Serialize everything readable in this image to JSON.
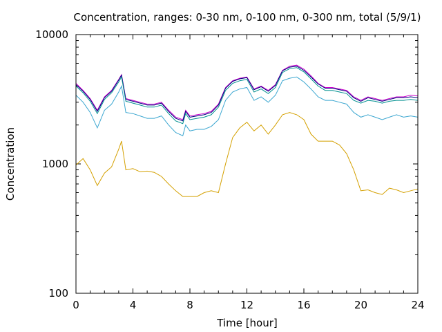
{
  "chart_data": {
    "type": "line",
    "title": "Concentration, ranges: 0-30 nm, 0-100 nm, 0-300 nm, total (5/9/1)",
    "xlabel": "Time [hour]",
    "ylabel": "Concentration",
    "xlim": [
      0,
      24
    ],
    "ylim": [
      100,
      10000
    ],
    "yscale": "log",
    "grid": false,
    "legend": "none",
    "x_ticks": [
      "0",
      "4",
      "8",
      "12",
      "16",
      "20",
      "24"
    ],
    "y_ticks": [
      "100",
      "1000",
      "10000"
    ],
    "x": [
      0,
      0.5,
      1,
      1.5,
      2,
      2.5,
      3,
      3.2,
      3.5,
      4,
      4.5,
      5,
      5.5,
      6,
      6.5,
      7,
      7.5,
      7.7,
      8,
      8.5,
      9,
      9.5,
      10,
      10.5,
      11,
      11.5,
      12,
      12.5,
      13,
      13.5,
      14,
      14.5,
      15,
      15.5,
      16,
      16.5,
      17,
      17.5,
      18,
      18.5,
      19,
      19.5,
      20,
      20.5,
      21,
      21.5,
      22,
      22.5,
      23,
      23.5,
      24
    ],
    "series": [
      {
        "color": "#cc00cc",
        "values": [
          4200,
          3700,
          3200,
          2600,
          3300,
          3700,
          4500,
          4900,
          3200,
          3100,
          3000,
          2900,
          2900,
          3000,
          2600,
          2300,
          2200,
          2600,
          2350,
          2400,
          2450,
          2550,
          2900,
          3900,
          4400,
          4600,
          4700,
          3800,
          4000,
          3700,
          4100,
          5300,
          5700,
          5800,
          5400,
          4800,
          4200,
          3900,
          3900,
          3800,
          3700,
          3300,
          3100,
          3300,
          3200,
          3100,
          3200,
          3300,
          3300,
          3400,
          3350
        ]
      },
      {
        "color": "#000080",
        "values": [
          4100,
          3650,
          3150,
          2550,
          3250,
          3650,
          4450,
          4850,
          3150,
          3050,
          2950,
          2850,
          2850,
          2950,
          2550,
          2250,
          2150,
          2550,
          2300,
          2350,
          2400,
          2500,
          2850,
          3850,
          4350,
          4550,
          4650,
          3750,
          3950,
          3650,
          4050,
          5250,
          5600,
          5700,
          5300,
          4700,
          4150,
          3850,
          3850,
          3750,
          3650,
          3250,
          3050,
          3250,
          3150,
          3050,
          3150,
          3250,
          3250,
          3300,
          3250
        ]
      },
      {
        "color": "#009090",
        "values": [
          4000,
          3550,
          3050,
          2450,
          3150,
          3550,
          4300,
          4700,
          3050,
          2950,
          2850,
          2750,
          2750,
          2850,
          2450,
          2150,
          2050,
          2450,
          2200,
          2250,
          2300,
          2400,
          2750,
          3700,
          4200,
          4400,
          4500,
          3600,
          3800,
          3500,
          3900,
          5100,
          5450,
          5550,
          5150,
          4550,
          4000,
          3700,
          3700,
          3600,
          3500,
          3100,
          2950,
          3100,
          3050,
          2950,
          3050,
          3100,
          3100,
          3150,
          3100
        ]
      },
      {
        "color": "#3aa6d0",
        "values": [
          3400,
          3000,
          2500,
          1900,
          2600,
          2900,
          3600,
          4000,
          2500,
          2450,
          2350,
          2250,
          2250,
          2350,
          2000,
          1750,
          1650,
          2000,
          1800,
          1850,
          1850,
          1950,
          2200,
          3100,
          3600,
          3800,
          3900,
          3100,
          3300,
          3000,
          3400,
          4400,
          4600,
          4700,
          4300,
          3800,
          3300,
          3100,
          3100,
          3000,
          2900,
          2500,
          2300,
          2400,
          2300,
          2200,
          2300,
          2400,
          2300,
          2350,
          2300
        ]
      },
      {
        "color": "#d4a000",
        "values": [
          980,
          1100,
          900,
          680,
          850,
          950,
          1300,
          1500,
          900,
          920,
          870,
          880,
          860,
          800,
          700,
          620,
          560,
          560,
          560,
          560,
          600,
          620,
          600,
          1000,
          1600,
          1900,
          2100,
          1800,
          2000,
          1700,
          2000,
          2400,
          2500,
          2400,
          2200,
          1700,
          1500,
          1500,
          1500,
          1400,
          1200,
          900,
          620,
          630,
          600,
          580,
          650,
          630,
          600,
          620,
          640
        ]
      }
    ]
  }
}
